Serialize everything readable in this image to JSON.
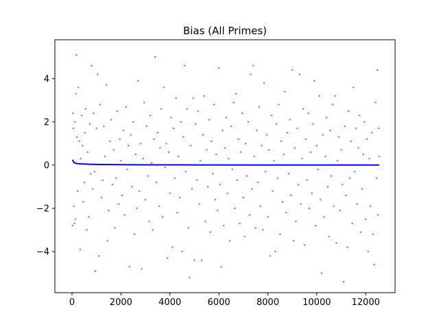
{
  "chart_data": {
    "type": "scatter",
    "title": "Bias (All Primes)",
    "xlabel": "",
    "ylabel": "",
    "xlim": [
      -700,
      13200
    ],
    "ylim": [
      -5.9,
      5.8
    ],
    "xticks": [
      0,
      2000,
      4000,
      6000,
      8000,
      10000,
      12000
    ],
    "xtick_labels": [
      "0",
      "2000",
      "4000",
      "6000",
      "8000",
      "10000",
      "12000"
    ],
    "yticks": [
      -4,
      -2,
      0,
      2,
      4
    ],
    "ytick_labels": [
      "−4",
      "−2",
      "0",
      "2",
      "4"
    ],
    "grid": false,
    "legend": "none",
    "colors": {
      "scatter": "#ff0000",
      "line": "#0000ff",
      "axes": "#000000"
    },
    "series": [
      {
        "kind": "scatter",
        "points": [
          [
            20,
            -2.8
          ],
          [
            40,
            2.4
          ],
          [
            60,
            1.7
          ],
          [
            80,
            -1.9
          ],
          [
            100,
            -2.7
          ],
          [
            120,
            2.0
          ],
          [
            140,
            -2.5
          ],
          [
            160,
            3.3
          ],
          [
            180,
            5.1
          ],
          [
            200,
            1.3
          ],
          [
            230,
            -1.2
          ],
          [
            260,
            3.6
          ],
          [
            300,
            1.1
          ],
          [
            330,
            -3.9
          ],
          [
            360,
            0.3
          ],
          [
            400,
            2.3
          ],
          [
            430,
            0.9
          ],
          [
            460,
            -1.7
          ],
          [
            500,
            -0.8
          ],
          [
            530,
            1.5
          ],
          [
            560,
            2.6
          ],
          [
            600,
            -3.0
          ],
          [
            640,
            0.6
          ],
          [
            680,
            -2.4
          ],
          [
            720,
            1.9
          ],
          [
            760,
            -0.4
          ],
          [
            800,
            4.6
          ],
          [
            840,
            -1.1
          ],
          [
            880,
            2.4
          ],
          [
            920,
            -0.3
          ],
          [
            960,
            -4.9
          ],
          [
            1000,
            1.7
          ],
          [
            1050,
            4.2
          ],
          [
            1100,
            -4.2
          ],
          [
            1150,
            2.8
          ],
          [
            1200,
            -1.5
          ],
          [
            1250,
            -0.7
          ],
          [
            1300,
            1.8
          ],
          [
            1350,
            0.4
          ],
          [
            1400,
            3.7
          ],
          [
            1450,
            -3.5
          ],
          [
            1500,
            -2.1
          ],
          [
            1550,
            1.1
          ],
          [
            1600,
            2.1
          ],
          [
            1650,
            -0.9
          ],
          [
            1700,
            0.7
          ],
          [
            1750,
            -2.9
          ],
          [
            1800,
            -0.6
          ],
          [
            1850,
            2.5
          ],
          [
            1900,
            -1.8
          ],
          [
            1950,
            1.2
          ],
          [
            2000,
            0.2
          ],
          [
            2050,
            -1.4
          ],
          [
            2100,
            1.6
          ],
          [
            2150,
            -2.3
          ],
          [
            2200,
            2.7
          ],
          [
            2250,
            -0.2
          ],
          [
            2300,
            0.9
          ],
          [
            2350,
            -4.7
          ],
          [
            2400,
            1.4
          ],
          [
            2450,
            -1.0
          ],
          [
            2500,
            2.0
          ],
          [
            2550,
            -3.2
          ],
          [
            2600,
            0.5
          ],
          [
            2650,
            -2.0
          ],
          [
            2700,
            3.9
          ],
          [
            2750,
            -1.2
          ],
          [
            2800,
            1.0
          ],
          [
            2850,
            -4.8
          ],
          [
            2900,
            0.3
          ],
          [
            2950,
            2.9
          ],
          [
            3000,
            -1.6
          ],
          [
            3050,
            1.8
          ],
          [
            3100,
            -0.5
          ],
          [
            3150,
            -2.6
          ],
          [
            3200,
            2.3
          ],
          [
            3250,
            0.1
          ],
          [
            3300,
            -3.0
          ],
          [
            3350,
            1.2
          ],
          [
            3400,
            5.0
          ],
          [
            3450,
            -0.8
          ],
          [
            3500,
            1.5
          ],
          [
            3550,
            -1.9
          ],
          [
            3600,
            0.8
          ],
          [
            3650,
            2.6
          ],
          [
            3700,
            -2.4
          ],
          [
            3750,
            3.6
          ],
          [
            3800,
            -0.1
          ],
          [
            3850,
            1.0
          ],
          [
            3900,
            -4.3
          ],
          [
            3950,
            0.6
          ],
          [
            4000,
            -1.3
          ],
          [
            4050,
            2.2
          ],
          [
            4100,
            -3.8
          ],
          [
            4150,
            1.7
          ],
          [
            4200,
            -0.6
          ],
          [
            4250,
            3.1
          ],
          [
            4300,
            -2.2
          ],
          [
            4350,
            0.4
          ],
          [
            4400,
            -1.5
          ],
          [
            4450,
            2.0
          ],
          [
            4500,
            -4.0
          ],
          [
            4550,
            1.3
          ],
          [
            4600,
            4.6
          ],
          [
            4650,
            -0.3
          ],
          [
            4700,
            2.6
          ],
          [
            4750,
            -2.9
          ],
          [
            4800,
            -5.2
          ],
          [
            4850,
            0.9
          ],
          [
            4900,
            -1.1
          ],
          [
            4950,
            3.1
          ],
          [
            5000,
            -4.4
          ],
          [
            5050,
            1.9
          ],
          [
            5100,
            -0.7
          ],
          [
            5150,
            2.5
          ],
          [
            5200,
            -1.8
          ],
          [
            5250,
            0.2
          ],
          [
            5300,
            -4.4
          ],
          [
            5350,
            1.4
          ],
          [
            5400,
            3.2
          ],
          [
            5450,
            -2.6
          ],
          [
            5500,
            0.7
          ],
          [
            5550,
            -1.0
          ],
          [
            5600,
            2.1
          ],
          [
            5650,
            -3.1
          ],
          [
            5700,
            1.1
          ],
          [
            5750,
            -0.4
          ],
          [
            5800,
            2.8
          ],
          [
            5850,
            -1.6
          ],
          [
            5900,
            0.5
          ],
          [
            5950,
            -2.1
          ],
          [
            6000,
            4.5
          ],
          [
            6050,
            -0.9
          ],
          [
            6100,
            -4.7
          ],
          [
            6150,
            1.6
          ],
          [
            6200,
            -2.8
          ],
          [
            6250,
            0.8
          ],
          [
            6300,
            2.2
          ],
          [
            6350,
            -1.3
          ],
          [
            6400,
            0.3
          ],
          [
            6450,
            -3.5
          ],
          [
            6500,
            1.8
          ],
          [
            6550,
            -0.2
          ],
          [
            6600,
            2.9
          ],
          [
            6650,
            -2.0
          ],
          [
            6700,
            3.3
          ],
          [
            6750,
            -0.7
          ],
          [
            6800,
            1.2
          ],
          [
            6850,
            -2.7
          ],
          [
            6900,
            0.6
          ],
          [
            6950,
            2.4
          ],
          [
            7000,
            -1.5
          ],
          [
            7050,
            -3.3
          ],
          [
            7100,
            1.0
          ],
          [
            7150,
            -0.5
          ],
          [
            7200,
            2.0
          ],
          [
            7250,
            -2.3
          ],
          [
            7300,
            4.2
          ],
          [
            7350,
            -1.1
          ],
          [
            7400,
            4.6
          ],
          [
            7450,
            0.4
          ],
          [
            7500,
            -2.9
          ],
          [
            7550,
            1.6
          ],
          [
            7600,
            -0.8
          ],
          [
            7650,
            2.7
          ],
          [
            7700,
            -1.9
          ],
          [
            7750,
            0.9
          ],
          [
            7800,
            -3.0
          ],
          [
            7850,
            3.8
          ],
          [
            7900,
            -0.3
          ],
          [
            7950,
            1.4
          ],
          [
            8000,
            -2.4
          ],
          [
            8050,
            0.7
          ],
          [
            8100,
            -4.2
          ],
          [
            8150,
            2.3
          ],
          [
            8200,
            -1.2
          ],
          [
            8250,
            0.2
          ],
          [
            8300,
            -4.0
          ],
          [
            8350,
            1.9
          ],
          [
            8400,
            -0.6
          ],
          [
            8450,
            2.8
          ],
          [
            8500,
            -3.2
          ],
          [
            8550,
            1.1
          ],
          [
            8600,
            -1.7
          ],
          [
            8650,
            0.5
          ],
          [
            8700,
            3.4
          ],
          [
            8750,
            -2.2
          ],
          [
            8800,
            1.5
          ],
          [
            8850,
            -0.4
          ],
          [
            8900,
            2.1
          ],
          [
            8950,
            -1.4
          ],
          [
            9000,
            4.4
          ],
          [
            9050,
            -3.5
          ],
          [
            9100,
            0.8
          ],
          [
            9150,
            -2.6
          ],
          [
            9200,
            1.7
          ],
          [
            9250,
            -0.9
          ],
          [
            9300,
            4.2
          ],
          [
            9350,
            -1.8
          ],
          [
            9400,
            0.3
          ],
          [
            9450,
            2.6
          ],
          [
            9500,
            -3.7
          ],
          [
            9550,
            1.2
          ],
          [
            9600,
            -0.7
          ],
          [
            9650,
            2.4
          ],
          [
            9700,
            -2.0
          ],
          [
            9750,
            0.6
          ],
          [
            9800,
            -1.3
          ],
          [
            9850,
            1.9
          ],
          [
            9900,
            3.9
          ],
          [
            9950,
            -2.8
          ],
          [
            10000,
            0.9
          ],
          [
            10050,
            -0.2
          ],
          [
            10100,
            3.2
          ],
          [
            10150,
            -1.6
          ],
          [
            10200,
            -5.0
          ],
          [
            10250,
            1.4
          ],
          [
            10300,
            -2.4
          ],
          [
            10350,
            0.4
          ],
          [
            10400,
            2.2
          ],
          [
            10450,
            -1.0
          ],
          [
            10500,
            -3.3
          ],
          [
            10550,
            1.6
          ],
          [
            10600,
            -0.5
          ],
          [
            10650,
            2.8
          ],
          [
            10700,
            -1.9
          ],
          [
            10750,
            3.2
          ],
          [
            10800,
            -3.6
          ],
          [
            10850,
            0.2
          ],
          [
            10900,
            1.3
          ],
          [
            10950,
            -2.1
          ],
          [
            11000,
            0.7
          ],
          [
            11050,
            -0.9
          ],
          [
            11100,
            -5.4
          ],
          [
            11150,
            1.8
          ],
          [
            11200,
            -1.4
          ],
          [
            11250,
            -3.8
          ],
          [
            11300,
            2.5
          ],
          [
            11350,
            -0.6
          ],
          [
            11400,
            1.1
          ],
          [
            11450,
            -2.7
          ],
          [
            11500,
            3.6
          ],
          [
            11550,
            -0.3
          ],
          [
            11600,
            1.7
          ],
          [
            11650,
            -1.8
          ],
          [
            11700,
            0.8
          ],
          [
            11750,
            2.3
          ],
          [
            11800,
            -3.1
          ],
          [
            11850,
            -1.1
          ],
          [
            11900,
            0.5
          ],
          [
            11950,
            2.0
          ],
          [
            12000,
            -2.5
          ],
          [
            12050,
            1.2
          ],
          [
            12100,
            -4.0
          ],
          [
            12150,
            0.3
          ],
          [
            12200,
            -1.9
          ],
          [
            12250,
            1.5
          ],
          [
            12300,
            -3.2
          ],
          [
            12350,
            -4.6
          ],
          [
            12400,
            2.9
          ],
          [
            12450,
            -0.6
          ],
          [
            12480,
            4.4
          ],
          [
            12500,
            -2.3
          ],
          [
            12530,
            1.7
          ],
          [
            12550,
            0.4
          ]
        ]
      },
      {
        "kind": "line",
        "points": [
          [
            20,
            0.25
          ],
          [
            40,
            0.2
          ],
          [
            60,
            0.16
          ],
          [
            80,
            0.13
          ],
          [
            100,
            0.11
          ],
          [
            150,
            0.09
          ],
          [
            200,
            0.07
          ],
          [
            300,
            0.06
          ],
          [
            500,
            0.05
          ],
          [
            800,
            0.04
          ],
          [
            1200,
            0.03
          ],
          [
            2000,
            0.02
          ],
          [
            3000,
            0.015
          ],
          [
            5000,
            0.01
          ],
          [
            8000,
            0.008
          ],
          [
            12000,
            0.006
          ],
          [
            12550,
            0.005
          ]
        ]
      }
    ]
  }
}
